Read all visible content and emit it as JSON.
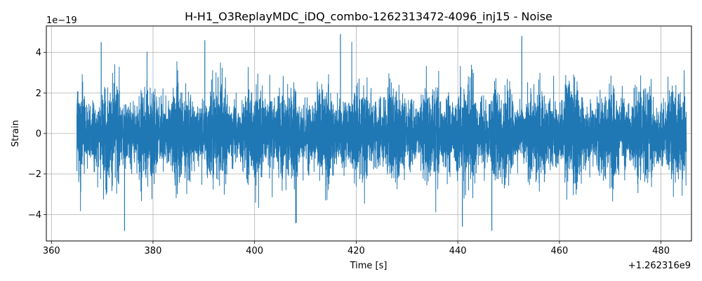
{
  "chart_data": {
    "type": "line",
    "title": "H-H1_O3ReplayMDC_iDQ_combo-1262313472-4096_inj15 - Noise",
    "xlabel": "Time [s]",
    "ylabel": "Strain",
    "x_offset_label": "+1.262316e9",
    "y_scale_label": "1e−19",
    "xlim": [
      359,
      486
    ],
    "ylim": [
      -5.3,
      5.3
    ],
    "x_ticks": [
      360,
      380,
      400,
      420,
      440,
      460,
      480
    ],
    "y_ticks": [
      -4,
      -2,
      0,
      2,
      4
    ],
    "grid": true,
    "series": [
      {
        "color": "#1f77b4",
        "x_range": [
          365,
          485
        ],
        "approx_amplitude_range": [
          -4.8,
          4.9
        ],
        "peaks": [
          {
            "x": 369.8,
            "y": 4.5
          },
          {
            "x": 374.4,
            "y": -4.8
          },
          {
            "x": 390.2,
            "y": 4.6
          },
          {
            "x": 408.2,
            "y": -4.4
          },
          {
            "x": 416.9,
            "y": 4.9
          },
          {
            "x": 440.9,
            "y": -4.6
          },
          {
            "x": 446.7,
            "y": -4.8
          },
          {
            "x": 452.6,
            "y": 4.8
          }
        ]
      }
    ]
  }
}
